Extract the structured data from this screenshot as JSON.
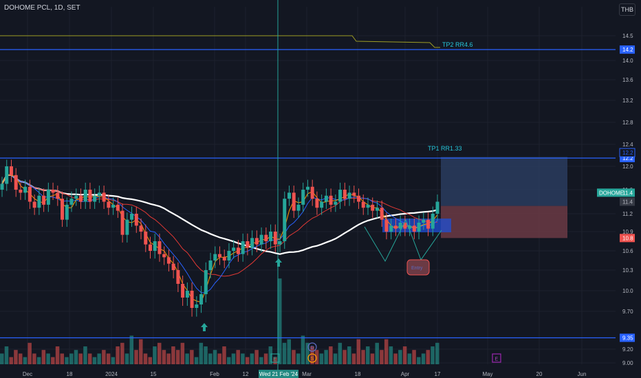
{
  "header": {
    "symbol_title": "DOHOME PCL, 1D, SET",
    "currency": "THB"
  },
  "colors": {
    "bg": "#131722",
    "grid": "#1e222d",
    "up": "#26a69a",
    "down": "#ef5350",
    "ema_white": "#ffffff",
    "ema_red": "#e53935",
    "ema_blue": "#2962ff",
    "ema_orange": "#ff9800",
    "level_line": "#2962ff",
    "label_text": "#26c6da"
  },
  "chart_data": {
    "type": "candlestick",
    "symbol": "DOHOME",
    "ylim": [
      9.0,
      14.7
    ],
    "y_ticks": [
      "14.5",
      "14.0",
      "13.6",
      "13.2",
      "12.8",
      "12.4",
      "12.0",
      "11.6",
      "11.2",
      "10.9",
      "10.6",
      "10.3",
      "10.0",
      "9.70",
      "9.20",
      "9.00"
    ],
    "x_ticks": [
      "Dec",
      "18",
      "2024",
      "15",
      "Feb",
      "12",
      "Mar",
      "18",
      "Apr",
      "17",
      "May",
      "20",
      "Jun"
    ],
    "crosshair_date": "Wed 21 Feb '24",
    "levels": [
      {
        "label": "14.2",
        "value": 14.22
      },
      {
        "label": "12.2",
        "value": 12.15
      },
      {
        "label": "9.35",
        "value": 9.35
      }
    ],
    "price_labels": [
      {
        "text": "12.2",
        "value": 12.25,
        "style": "outline"
      },
      {
        "text": "11.4",
        "value": 11.4,
        "style": "gray"
      },
      {
        "text": "10.8",
        "value": 10.8,
        "style": "red"
      }
    ],
    "last_price": {
      "name": "DOHOME",
      "value": "11.4"
    },
    "annotations": [
      {
        "text": "TP2 RR4.6"
      },
      {
        "text": "TP1 RR1.33"
      },
      {
        "text": "Entry"
      }
    ],
    "target_zone": {
      "from": 11.33,
      "to": 12.17
    },
    "stop_zone": {
      "from": 10.8,
      "to": 11.33
    },
    "series_close": [
      11.7,
      12.0,
      11.85,
      11.6,
      11.55,
      11.65,
      11.4,
      11.3,
      11.5,
      11.35,
      11.6,
      11.55,
      11.45,
      11.1,
      11.35,
      11.45,
      11.5,
      11.4,
      11.6,
      11.4,
      11.5,
      11.55,
      11.4,
      11.3,
      11.35,
      11.25,
      10.85,
      11.1,
      11.2,
      11.0,
      10.9,
      10.7,
      10.6,
      10.75,
      10.55,
      10.5,
      10.4,
      10.3,
      10.1,
      9.9,
      10.0,
      9.75,
      9.8,
      9.95,
      10.3,
      10.45,
      10.55,
      10.5,
      10.45,
      10.6,
      10.65,
      10.55,
      10.75,
      10.65,
      10.8,
      10.7,
      10.85,
      10.75,
      10.9,
      10.7,
      10.75,
      11.45,
      11.55,
      11.25,
      11.35,
      11.6,
      11.65,
      11.45,
      11.3,
      11.4,
      11.5,
      11.35,
      11.4,
      11.6,
      11.45,
      11.55,
      11.5,
      11.4,
      11.3,
      11.35,
      11.25,
      11.3,
      11.1,
      10.9,
      11.0,
      10.95,
      11.05,
      10.95,
      11.0,
      10.9,
      11.05,
      11.1,
      10.95,
      11.2,
      11.4
    ],
    "volume": [
      3,
      5,
      2,
      4,
      3,
      2,
      6,
      3,
      2,
      4,
      3,
      2,
      5,
      3,
      2,
      3,
      4,
      3,
      5,
      3,
      2,
      3,
      4,
      3,
      2,
      5,
      6,
      3,
      8,
      4,
      7,
      3,
      2,
      5,
      6,
      4,
      3,
      5,
      4,
      6,
      3,
      4,
      2,
      6,
      5,
      3,
      4,
      3,
      5,
      2,
      3,
      4,
      3,
      2,
      3,
      4,
      2,
      3,
      5,
      2,
      24,
      6,
      7,
      4,
      3,
      8,
      6,
      5,
      4,
      3,
      4,
      5,
      3,
      6,
      4,
      5,
      3,
      7,
      4,
      5,
      3,
      6,
      4,
      7,
      5,
      3,
      4,
      5,
      3,
      4,
      2,
      3,
      4,
      5,
      6
    ]
  }
}
